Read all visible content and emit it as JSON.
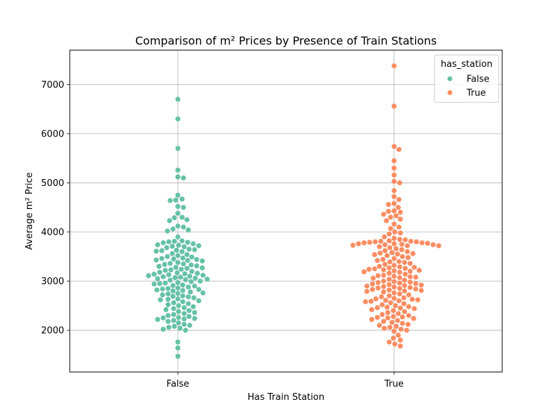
{
  "chart_data": {
    "type": "scatter",
    "subtype": "swarm",
    "title": "Comparison of m² Prices by Presence of Train Stations",
    "xlabel": "Has Train Station",
    "ylabel": "Average m² Price",
    "categories": [
      "False",
      "True"
    ],
    "ylim": [
      1150,
      7700
    ],
    "yticks": [
      "2000",
      "3000",
      "4000",
      "5000",
      "6000",
      "7000"
    ],
    "grid": true,
    "legend": {
      "title": "has_station",
      "placement": "top-right",
      "entries": [
        "False",
        "True"
      ]
    },
    "series": [
      {
        "name": "False",
        "color": "#66c2a5",
        "values": [
          6700,
          6300,
          5700,
          5260,
          5120,
          5100,
          4750,
          4670,
          4650,
          4640,
          4520,
          4500,
          4380,
          4300,
          4290,
          4250,
          4230,
          4120,
          4100,
          4060,
          4040,
          4020,
          3900,
          3820,
          3810,
          3800,
          3790,
          3780,
          3760,
          3740,
          3730,
          3720,
          3710,
          3700,
          3680,
          3650,
          3640,
          3630,
          3620,
          3610,
          3600,
          3560,
          3540,
          3520,
          3500,
          3490,
          3470,
          3460,
          3450,
          3440,
          3430,
          3420,
          3410,
          3380,
          3360,
          3350,
          3340,
          3330,
          3310,
          3300,
          3280,
          3270,
          3260,
          3240,
          3230,
          3220,
          3200,
          3180,
          3170,
          3160,
          3150,
          3140,
          3130,
          3120,
          3110,
          3100,
          3090,
          3080,
          3070,
          3060,
          3050,
          3040,
          3030,
          3020,
          3000,
          2990,
          2970,
          2960,
          2950,
          2940,
          2920,
          2910,
          2900,
          2880,
          2860,
          2850,
          2840,
          2830,
          2820,
          2810,
          2800,
          2780,
          2760,
          2750,
          2740,
          2720,
          2700,
          2690,
          2680,
          2660,
          2640,
          2630,
          2620,
          2600,
          2580,
          2560,
          2540,
          2520,
          2500,
          2480,
          2460,
          2440,
          2420,
          2400,
          2380,
          2360,
          2340,
          2320,
          2300,
          2280,
          2260,
          2250,
          2240,
          2230,
          2220,
          2200,
          2180,
          2150,
          2120,
          2100,
          2080,
          2060,
          2040,
          2020,
          2000,
          1760,
          1640,
          1470
        ]
      },
      {
        "name": "True",
        "color": "#fc8d62",
        "values": [
          7380,
          6560,
          5740,
          5680,
          5450,
          5300,
          5160,
          5030,
          5000,
          4840,
          4720,
          4660,
          4580,
          4560,
          4500,
          4430,
          4420,
          4400,
          4360,
          4330,
          4300,
          4260,
          4230,
          4160,
          4100,
          4070,
          4000,
          3980,
          3960,
          3900,
          3870,
          3850,
          3840,
          3820,
          3810,
          3810,
          3800,
          3800,
          3790,
          3780,
          3780,
          3770,
          3760,
          3760,
          3750,
          3740,
          3740,
          3730,
          3720,
          3720,
          3700,
          3680,
          3660,
          3640,
          3620,
          3600,
          3580,
          3570,
          3560,
          3550,
          3540,
          3520,
          3500,
          3480,
          3460,
          3440,
          3420,
          3400,
          3390,
          3380,
          3360,
          3340,
          3320,
          3300,
          3290,
          3280,
          3270,
          3260,
          3250,
          3240,
          3230,
          3220,
          3210,
          3200,
          3190,
          3180,
          3160,
          3140,
          3120,
          3110,
          3100,
          3090,
          3080,
          3070,
          3060,
          3040,
          3020,
          3000,
          2990,
          2980,
          2970,
          2960,
          2950,
          2940,
          2930,
          2920,
          2910,
          2900,
          2890,
          2880,
          2870,
          2860,
          2850,
          2840,
          2830,
          2820,
          2810,
          2800,
          2790,
          2780,
          2760,
          2740,
          2720,
          2700,
          2680,
          2660,
          2650,
          2640,
          2630,
          2620,
          2610,
          2600,
          2590,
          2580,
          2560,
          2540,
          2520,
          2500,
          2480,
          2470,
          2460,
          2450,
          2440,
          2420,
          2400,
          2380,
          2360,
          2340,
          2320,
          2300,
          2280,
          2270,
          2260,
          2250,
          2240,
          2220,
          2200,
          2180,
          2160,
          2140,
          2120,
          2100,
          2080,
          2060,
          2040,
          2020,
          2000,
          1980,
          1900,
          1840,
          1800,
          1760,
          1720,
          1680
        ]
      }
    ]
  }
}
